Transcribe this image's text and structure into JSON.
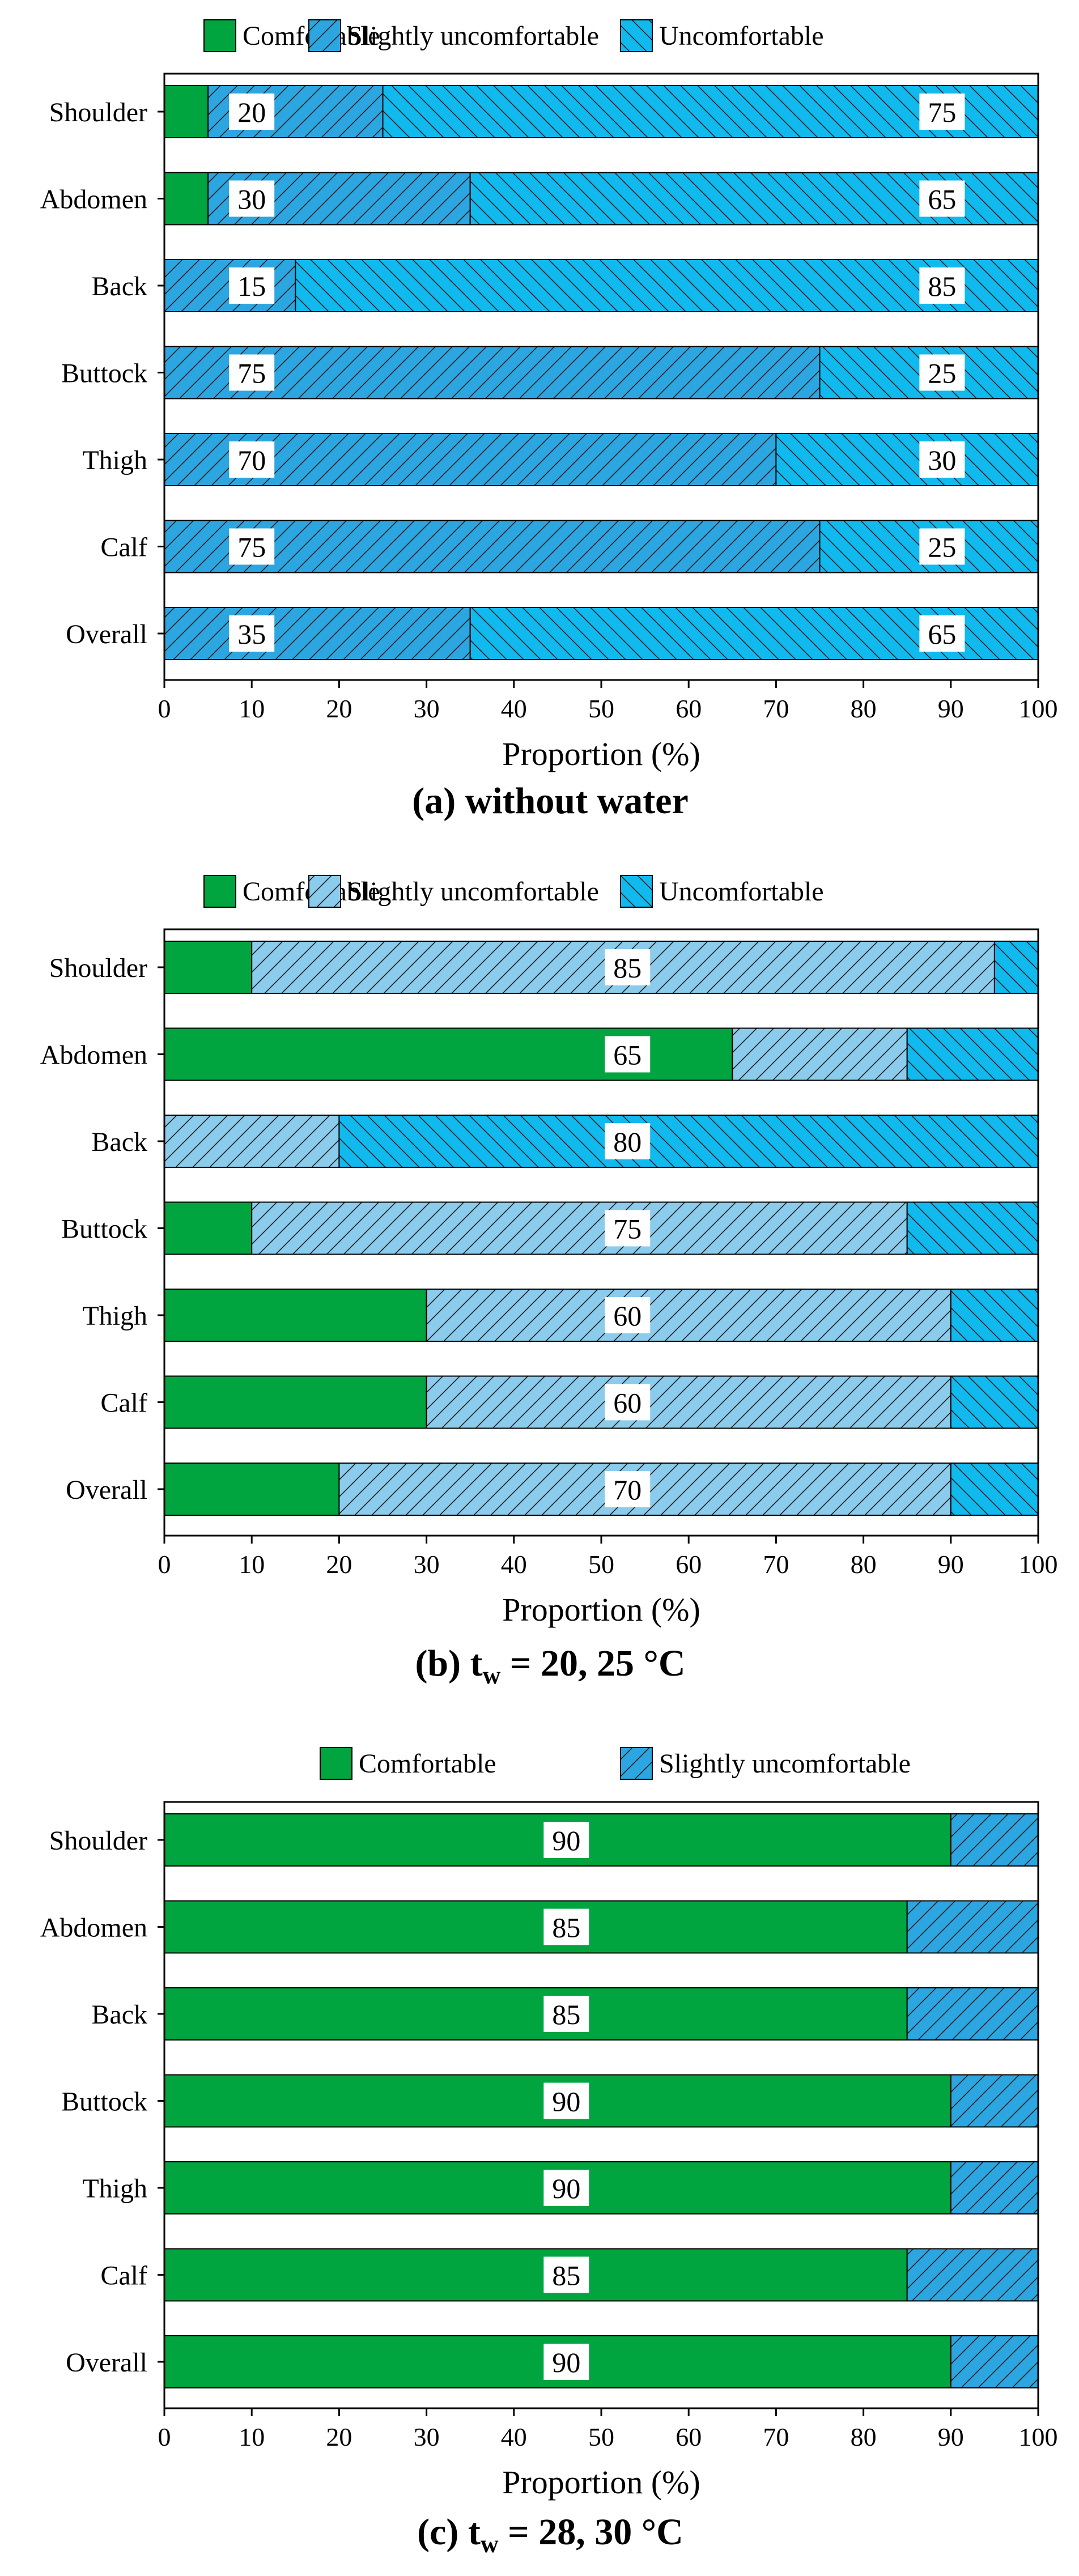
{
  "figure": {
    "captions": [
      {
        "prefix": "(a) without water",
        "sub": "",
        "suffix": ""
      },
      {
        "prefix": "(b) t",
        "sub": "w",
        "suffix": " = 20, 25 °C"
      },
      {
        "prefix": "(c)  t",
        "sub": "w",
        "suffix": " = 28, 30 °C"
      }
    ]
  },
  "colors": {
    "comfortable": "#00a53f",
    "slightly_dark": "#2ba6e0",
    "slightly_light": "#8bcbec",
    "uncomfortable": "#10b9ee",
    "axis": "#000000"
  },
  "chart_data": [
    {
      "type": "bar",
      "orientation": "horizontal",
      "stacked": true,
      "title": "(a) without water",
      "xlabel": "Proportion (%)",
      "ylabel": "",
      "xlim": [
        0,
        100
      ],
      "xticks": [
        0,
        10,
        20,
        30,
        40,
        50,
        60,
        70,
        80,
        90,
        100
      ],
      "categories": [
        "Shoulder",
        "Abdomen",
        "Back",
        "Buttock",
        "Thigh",
        "Calf",
        "Overall"
      ],
      "series": [
        {
          "name": "Comfortable",
          "values": [
            5,
            5,
            0,
            0,
            0,
            0,
            0
          ],
          "fill": "comfortable",
          "hatch": "none"
        },
        {
          "name": "Slightly uncomfortable",
          "values": [
            20,
            30,
            15,
            75,
            70,
            75,
            35
          ],
          "fill": "slightly_dark",
          "hatch": "/"
        },
        {
          "name": "Uncomfortable",
          "values": [
            75,
            65,
            85,
            25,
            30,
            25,
            65
          ],
          "fill": "uncomfortable",
          "hatch": "\\"
        }
      ],
      "data_labels": [
        {
          "row": 0,
          "x": 10,
          "text": "20"
        },
        {
          "row": 0,
          "x": 89,
          "text": "75"
        },
        {
          "row": 1,
          "x": 10,
          "text": "30"
        },
        {
          "row": 1,
          "x": 89,
          "text": "65"
        },
        {
          "row": 2,
          "x": 10,
          "text": "15"
        },
        {
          "row": 2,
          "x": 89,
          "text": "85"
        },
        {
          "row": 3,
          "x": 10,
          "text": "75"
        },
        {
          "row": 3,
          "x": 89,
          "text": "25"
        },
        {
          "row": 4,
          "x": 10,
          "text": "70"
        },
        {
          "row": 4,
          "x": 89,
          "text": "30"
        },
        {
          "row": 5,
          "x": 10,
          "text": "75"
        },
        {
          "row": 5,
          "x": 89,
          "text": "25"
        },
        {
          "row": 6,
          "x": 10,
          "text": "35"
        },
        {
          "row": 6,
          "x": 89,
          "text": "65"
        }
      ],
      "legend": {
        "position": "top"
      }
    },
    {
      "type": "bar",
      "orientation": "horizontal",
      "stacked": true,
      "title": "(b) tw = 20, 25 °C",
      "xlabel": "Proportion (%)",
      "ylabel": "",
      "xlim": [
        0,
        100
      ],
      "xticks": [
        0,
        10,
        20,
        30,
        40,
        50,
        60,
        70,
        80,
        90,
        100
      ],
      "categories": [
        "Shoulder",
        "Abdomen",
        "Back",
        "Buttock",
        "Thigh",
        "Calf",
        "Overall"
      ],
      "series": [
        {
          "name": "Comfortable",
          "values": [
            10,
            65,
            0,
            10,
            30,
            30,
            20
          ],
          "fill": "comfortable",
          "hatch": "none"
        },
        {
          "name": "Slightly uncomfortable",
          "values": [
            85,
            20,
            20,
            75,
            60,
            60,
            70
          ],
          "fill": "slightly_light",
          "hatch": "/"
        },
        {
          "name": "Uncomfortable",
          "values": [
            5,
            15,
            80,
            15,
            10,
            10,
            10
          ],
          "fill": "uncomfortable",
          "hatch": "\\"
        }
      ],
      "data_labels": [
        {
          "row": 0,
          "x": 53,
          "text": "85"
        },
        {
          "row": 1,
          "x": 53,
          "text": "65"
        },
        {
          "row": 2,
          "x": 53,
          "text": "80"
        },
        {
          "row": 3,
          "x": 53,
          "text": "75"
        },
        {
          "row": 4,
          "x": 53,
          "text": "60"
        },
        {
          "row": 5,
          "x": 53,
          "text": "60"
        },
        {
          "row": 6,
          "x": 53,
          "text": "70"
        }
      ],
      "legend": {
        "position": "top"
      }
    },
    {
      "type": "bar",
      "orientation": "horizontal",
      "stacked": true,
      "title": "(c)  tw = 28, 30 °C",
      "xlabel": "Proportion (%)",
      "ylabel": "",
      "xlim": [
        0,
        100
      ],
      "xticks": [
        0,
        10,
        20,
        30,
        40,
        50,
        60,
        70,
        80,
        90,
        100
      ],
      "categories": [
        "Shoulder",
        "Abdomen",
        "Back",
        "Buttock",
        "Thigh",
        "Calf",
        "Overall"
      ],
      "series": [
        {
          "name": "Comfortable",
          "values": [
            90,
            85,
            85,
            90,
            90,
            85,
            90
          ],
          "fill": "comfortable",
          "hatch": "none"
        },
        {
          "name": "Slightly uncomfortable",
          "values": [
            10,
            15,
            15,
            10,
            10,
            15,
            10
          ],
          "fill": "slightly_dark",
          "hatch": "/"
        }
      ],
      "data_labels": [
        {
          "row": 0,
          "x": 46,
          "text": "90"
        },
        {
          "row": 1,
          "x": 46,
          "text": "85"
        },
        {
          "row": 2,
          "x": 46,
          "text": "85"
        },
        {
          "row": 3,
          "x": 46,
          "text": "90"
        },
        {
          "row": 4,
          "x": 46,
          "text": "90"
        },
        {
          "row": 5,
          "x": 46,
          "text": "85"
        },
        {
          "row": 6,
          "x": 46,
          "text": "90"
        }
      ],
      "legend": {
        "position": "top"
      }
    }
  ]
}
